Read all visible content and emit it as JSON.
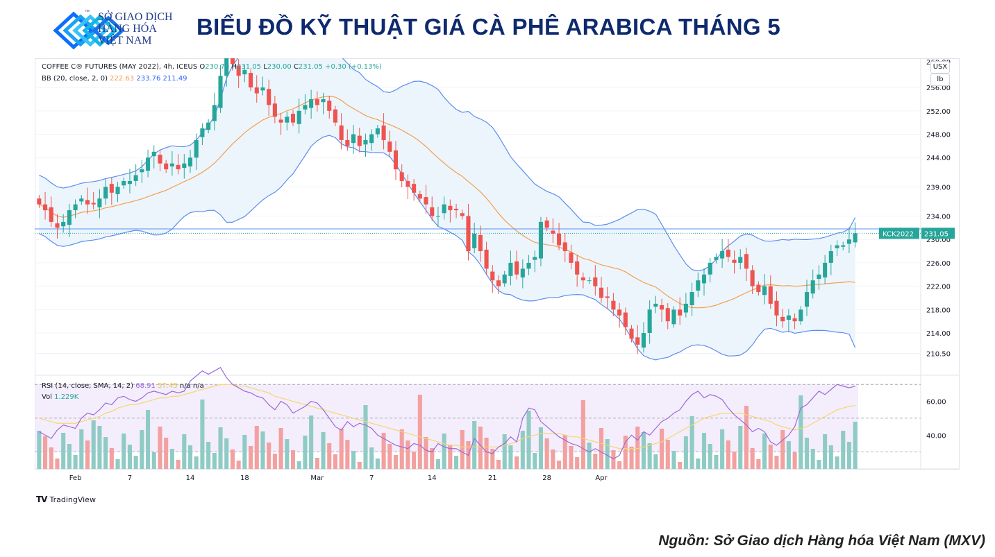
{
  "header": {
    "logo_lines": [
      "SỞ GIAO DỊCH",
      "HÀNG HÓA",
      "VIỆT NAM"
    ],
    "logo_tm": "™",
    "title": "BIỂU ĐỒ KỸ THUẬT GIÁ CÀ PHÊ ARABICA THÁNG 5"
  },
  "legend": {
    "symbol": "COFFEE C® FUTURES (MAY 2022), 4h, ICEUS",
    "o_label": "O",
    "o_value": "230.70",
    "h_label": "H",
    "h_value": "231.05",
    "l_label": "L",
    "l_value": "230.00",
    "c_label": "C",
    "c_value": "231.05",
    "change": "+0.30 (+0.13%)",
    "bb_label": "BB (20, close, 2, 0)",
    "bb_basis": "222.63",
    "bb_upper": "233.76",
    "bb_lower": "211.49",
    "rsi_label": "RSI (14, close, SMA, 14, 2)",
    "rsi_value": "68.91",
    "rsi_ma": "57.45",
    "rsi_na1": "n/a",
    "rsi_na2": "n/a",
    "vol_label": "Vol",
    "vol_value": "1.229K"
  },
  "unit_buttons": [
    "USX",
    "lb"
  ],
  "price_tag": {
    "label": "KCK2022",
    "value": "231.05",
    "level": 231.05
  },
  "hline_level": 231.8,
  "footer": {
    "brand": "TradingView",
    "source": "Nguồn: Sở Giao dịch Hàng hóa Việt Nam (MXV)"
  },
  "colors": {
    "up": "#26a69a",
    "down": "#ef5350",
    "band": "#5b8def",
    "basis": "#f59e4c",
    "band_fill": "#eaf4fc",
    "rsi": "#9c6ad6",
    "rsi_ma": "#f5d76e",
    "rsi_bg": "#efe6fb",
    "vol_up": "#8fcbc5",
    "vol_down": "#f2a0a0",
    "title": "#0e2a6e",
    "logo": "#1e88e5"
  },
  "chart_data": {
    "type": "candlestick",
    "x_tick_labels": [
      "Feb",
      "7",
      "14",
      "18",
      "Mar",
      "7",
      "14",
      "21",
      "28",
      "Apr"
    ],
    "x_tick_bar_index": [
      6,
      15,
      25,
      34,
      46,
      55,
      65,
      75,
      84,
      93
    ],
    "price_axis_ticks": [
      "256.00",
      "252.00",
      "248.00",
      "244.00",
      "239.00",
      "234.00",
      "230.00",
      "226.00",
      "222.00",
      "218.00",
      "214.00",
      "210.50"
    ],
    "price_axis_values": [
      256,
      252,
      248,
      244,
      239,
      234,
      230,
      226,
      222,
      218,
      214,
      210.5
    ],
    "price_top_label": "260.00",
    "rsi_axis_ticks": [
      "60.00",
      "40.00"
    ],
    "rsi_axis_values": [
      60,
      40
    ],
    "rsi_bands": [
      70,
      50,
      30
    ],
    "close": [
      236,
      235,
      233,
      232,
      233,
      235,
      236,
      237,
      236,
      236,
      237,
      239,
      238,
      239,
      240,
      240,
      241,
      242,
      244,
      245,
      243,
      242,
      243,
      242,
      243,
      244,
      247,
      249,
      250,
      253,
      258,
      262,
      260,
      258,
      259,
      256,
      255,
      256,
      253,
      251,
      250,
      251,
      250,
      252,
      253,
      254,
      253,
      254,
      252,
      250,
      247,
      246,
      248,
      246,
      247,
      248,
      249,
      247,
      245,
      242,
      240,
      239,
      238,
      237,
      236,
      234,
      234,
      236,
      235,
      235,
      234,
      228,
      231,
      228,
      225,
      223,
      222,
      224,
      226,
      224,
      225,
      226,
      227,
      233,
      232,
      231,
      229,
      228,
      226,
      224,
      223,
      223,
      222,
      220,
      220,
      218,
      217,
      215,
      213,
      212,
      214,
      218,
      219,
      218,
      216,
      218,
      217,
      219,
      221,
      223,
      224,
      226,
      227,
      228,
      227,
      226,
      227,
      225,
      222,
      221,
      222,
      219,
      217,
      216,
      217,
      216,
      218,
      221,
      223,
      224,
      226,
      228,
      229,
      229,
      230,
      231.05
    ],
    "rsi": [
      42,
      40,
      38,
      43,
      46,
      45,
      44,
      50,
      53,
      52,
      55,
      59,
      58,
      62,
      63,
      61,
      60,
      62,
      65,
      66,
      65,
      64,
      66,
      65,
      66,
      72,
      75,
      78,
      76,
      78,
      80,
      74,
      70,
      68,
      66,
      65,
      63,
      62,
      58,
      55,
      60,
      58,
      53,
      55,
      57,
      60,
      59,
      55,
      50,
      45,
      43,
      48,
      45,
      47,
      46,
      44,
      40,
      38,
      36,
      34,
      33,
      32,
      35,
      34,
      31,
      30,
      35,
      33,
      32,
      32,
      30,
      28,
      38,
      34,
      30,
      29,
      33,
      35,
      39,
      36,
      50,
      56,
      55,
      48,
      45,
      42,
      39,
      37,
      35,
      34,
      32,
      30,
      32,
      30,
      28,
      26,
      28,
      36,
      40,
      37,
      42,
      40,
      44,
      48,
      50,
      53,
      55,
      60,
      64,
      66,
      62,
      64,
      63,
      61,
      56,
      52,
      49,
      46,
      42,
      44,
      42,
      36,
      34,
      37,
      40,
      45,
      56,
      58,
      62,
      66,
      64,
      67,
      70,
      69,
      68,
      68.91
    ],
    "rsi_sma": [
      50,
      49,
      48,
      47,
      47,
      47,
      47,
      48,
      49,
      50,
      51,
      53,
      54,
      56,
      57,
      58,
      58,
      59,
      60,
      61,
      62,
      62,
      63,
      63,
      64,
      65,
      66,
      67,
      68,
      69,
      70,
      70,
      70,
      69,
      69,
      68,
      67,
      66,
      65,
      63,
      62,
      61,
      60,
      59,
      58,
      57,
      56,
      55,
      54,
      53,
      52,
      51,
      50,
      49,
      48,
      47,
      46,
      45,
      44,
      43,
      42,
      41,
      40,
      39,
      38,
      37,
      36,
      35,
      34,
      34,
      33,
      33,
      33,
      33,
      33,
      33,
      33,
      34,
      35,
      36,
      38,
      39,
      40,
      41,
      41,
      41,
      41,
      40,
      39,
      39,
      38,
      37,
      36,
      35,
      34,
      33,
      32,
      32,
      32,
      32,
      33,
      34,
      35,
      36,
      38,
      40,
      42,
      44,
      46,
      48,
      50,
      51,
      52,
      53,
      53,
      53,
      53,
      52,
      51,
      50,
      49,
      48,
      46,
      45,
      44,
      43,
      44,
      45,
      47,
      49,
      51,
      53,
      55,
      56,
      57,
      57.45
    ],
    "vol_base": 1.229,
    "basis_last": 222.63,
    "upper_last": 233.76,
    "lower_last": 211.49
  }
}
